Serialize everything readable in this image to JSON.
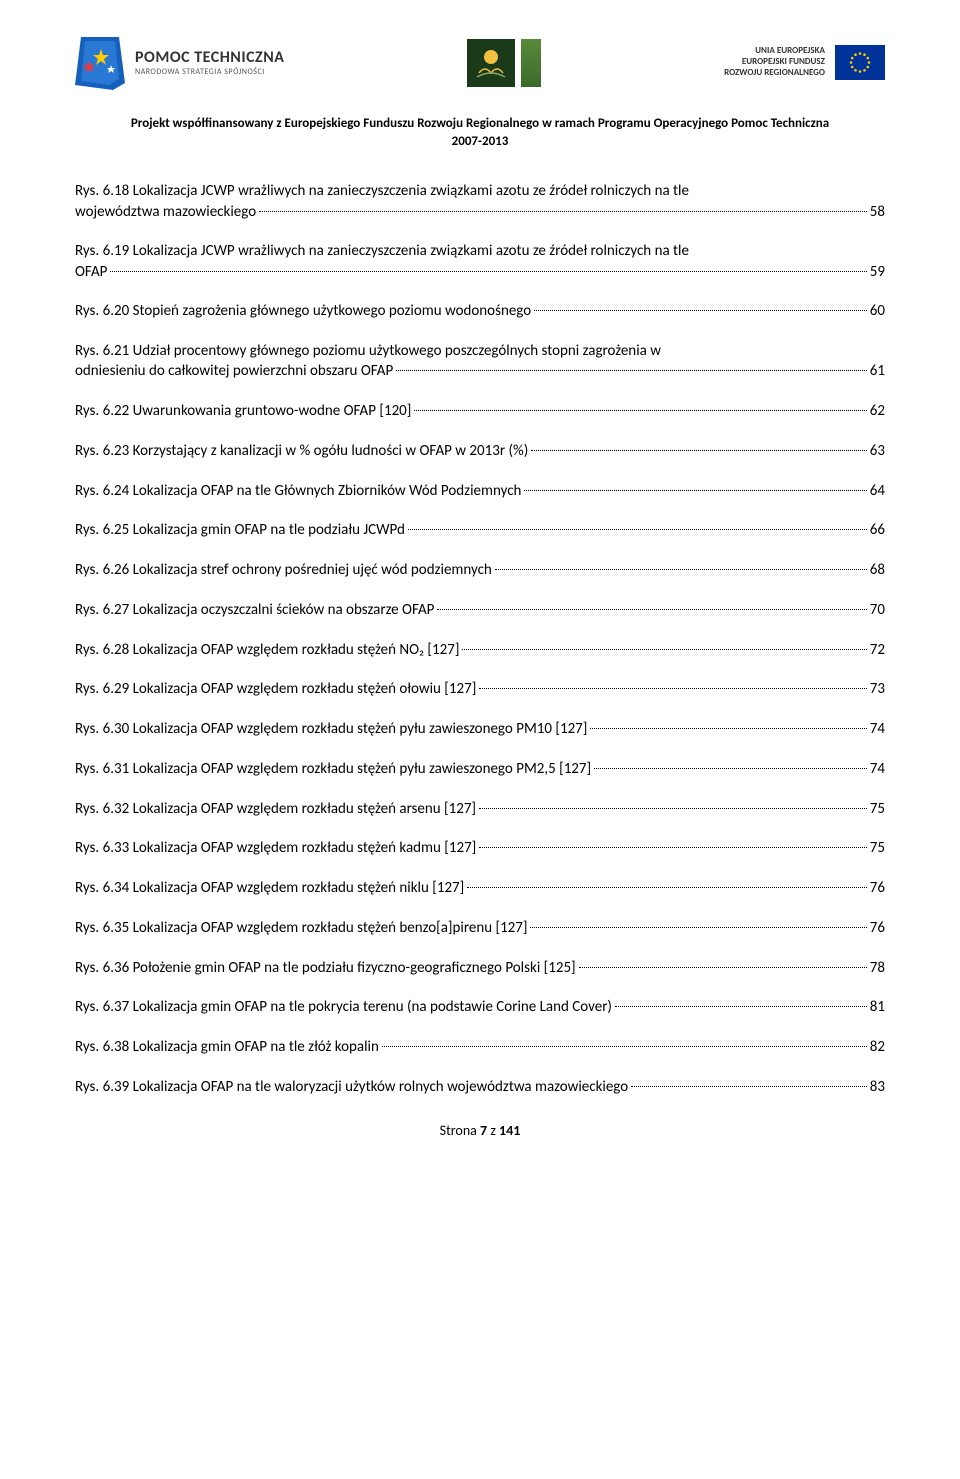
{
  "header": {
    "logo_left_title": "POMOC TECHNICZNA",
    "logo_left_subtitle": "NARODOWA STRATEGIA SPÓJNOŚCI",
    "logo_right_line1": "UNIA EUROPEJSKA",
    "logo_right_line2": "EUROPEJSKI FUNDUSZ",
    "logo_right_line3": "ROZWOJU REGIONALNEGO"
  },
  "project_line1": "Projekt współfinansowany z Europejskiego Funduszu Rozwoju Regionalnego w ramach Programu Operacyjnego Pomoc Techniczna",
  "project_line2": "2007-2013",
  "toc": [
    {
      "text1": "Rys. 6.18 Lokalizacja JCWP wrażliwych na zanieczyszczenia związkami azotu ze źródeł rolniczych na tle",
      "text2": "województwa mazowieckiego",
      "page": "58",
      "wrap": true
    },
    {
      "text1": "Rys. 6.19 Lokalizacja JCWP wrażliwych na zanieczyszczenia związkami azotu ze źródeł rolniczych na tle",
      "text2": "OFAP",
      "page": "59",
      "wrap": true
    },
    {
      "text": "Rys. 6.20 Stopień zagrożenia głównego użytkowego poziomu wodonośnego",
      "page": "60"
    },
    {
      "text1": "Rys. 6.21 Udział procentowy głównego poziomu użytkowego poszczególnych stopni zagrożenia w",
      "text2": "odniesieniu do całkowitej powierzchni obszaru OFAP",
      "page": "61",
      "wrap": true
    },
    {
      "text": "Rys. 6.22 Uwarunkowania gruntowo-wodne OFAP [120]",
      "page": "62"
    },
    {
      "text": "Rys. 6.23 Korzystający z kanalizacji w % ogółu ludności w OFAP w 2013r (%)",
      "page": "63"
    },
    {
      "text": "Rys. 6.24 Lokalizacja OFAP na tle Głównych Zbiorników Wód Podziemnych",
      "page": "64"
    },
    {
      "text": "Rys. 6.25 Lokalizacja gmin OFAP na tle podziału JCWPd",
      "page": "66"
    },
    {
      "text": "Rys. 6.26 Lokalizacja stref ochrony pośredniej ujęć wód podziemnych",
      "page": "68"
    },
    {
      "text": "Rys. 6.27 Lokalizacja oczyszczalni ścieków na obszarze OFAP",
      "page": "70"
    },
    {
      "text": "Rys. 6.28 Lokalizacja OFAP względem rozkładu stężeń NO₂ [127]",
      "page": "72"
    },
    {
      "text": "Rys. 6.29 Lokalizacja OFAP względem rozkładu stężeń ołowiu [127]",
      "page": "73"
    },
    {
      "text": "Rys. 6.30 Lokalizacja OFAP względem rozkładu stężeń pyłu zawieszonego PM10 [127]",
      "page": "74"
    },
    {
      "text": "Rys. 6.31 Lokalizacja OFAP względem rozkładu stężeń pyłu zawieszonego PM2,5 [127]",
      "page": "74"
    },
    {
      "text": "Rys. 6.32 Lokalizacja OFAP względem rozkładu stężeń arsenu [127]",
      "page": "75"
    },
    {
      "text": "Rys. 6.33 Lokalizacja OFAP względem rozkładu stężeń kadmu [127]",
      "page": "75"
    },
    {
      "text": "Rys. 6.34 Lokalizacja OFAP względem rozkładu stężeń niklu [127]",
      "page": "76"
    },
    {
      "text": "Rys. 6.35 Lokalizacja OFAP względem rozkładu stężeń benzo[a]pirenu [127]",
      "page": "76"
    },
    {
      "text": "Rys. 6.36 Położenie gmin OFAP na tle podziału fizyczno-geograficznego Polski [125]",
      "page": "78"
    },
    {
      "text": "Rys. 6.37 Lokalizacja gmin OFAP na tle pokrycia terenu (na podstawie Corine Land Cover)",
      "page": "81"
    },
    {
      "text": "Rys. 6.38 Lokalizacja gmin OFAP na tle złóż kopalin",
      "page": "82"
    },
    {
      "text": "Rys. 6.39 Lokalizacja OFAP na tle waloryzacji użytków rolnych województwa mazowieckiego",
      "page": "83"
    }
  ],
  "footer": {
    "label": "Strona ",
    "current": "7",
    "sep": " z ",
    "total": "141"
  },
  "colors": {
    "text": "#000000",
    "bg": "#ffffff",
    "eu_blue": "#003399",
    "eu_yellow": "#ffcc00"
  }
}
